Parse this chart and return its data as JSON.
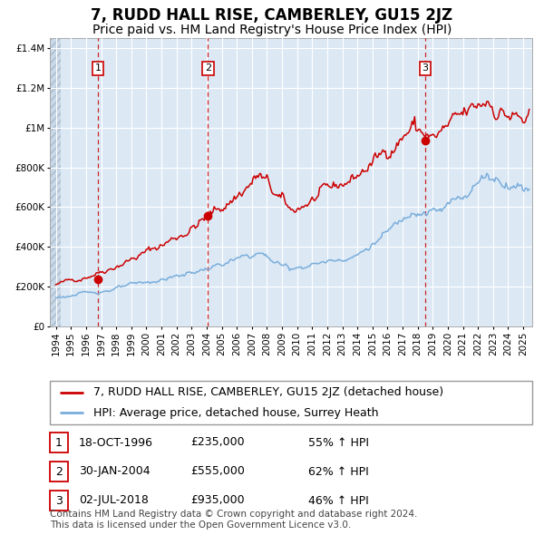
{
  "title": "7, RUDD HALL RISE, CAMBERLEY, GU15 2JZ",
  "subtitle": "Price paid vs. HM Land Registry's House Price Index (HPI)",
  "red_label": "7, RUDD HALL RISE, CAMBERLEY, GU15 2JZ (detached house)",
  "blue_label": "HPI: Average price, detached house, Surrey Heath",
  "footer1": "Contains HM Land Registry data © Crown copyright and database right 2024.",
  "footer2": "This data is licensed under the Open Government Licence v3.0.",
  "transactions": [
    {
      "num": 1,
      "date": "18-OCT-1996",
      "price": "£235,000",
      "pct": "55% ↑ HPI"
    },
    {
      "num": 2,
      "date": "30-JAN-2004",
      "price": "£555,000",
      "pct": "62% ↑ HPI"
    },
    {
      "num": 3,
      "date": "02-JUL-2018",
      "price": "£935,000",
      "pct": "46% ↑ HPI"
    }
  ],
  "transaction_dates_decimal": [
    1996.79,
    2004.08,
    2018.5
  ],
  "transaction_prices": [
    235000,
    555000,
    935000
  ],
  "xmin": 1993.6,
  "xmax": 2025.6,
  "ymin": 0,
  "ymax": 1450000,
  "yticks": [
    0,
    200000,
    400000,
    600000,
    800000,
    1000000,
    1200000,
    1400000
  ],
  "ytick_labels": [
    "£0",
    "£200K",
    "£400K",
    "£600K",
    "£800K",
    "£1M",
    "£1.2M",
    "£1.4M"
  ],
  "xticks": [
    1994,
    1995,
    1996,
    1997,
    1998,
    1999,
    2000,
    2001,
    2002,
    2003,
    2004,
    2005,
    2006,
    2007,
    2008,
    2009,
    2010,
    2011,
    2012,
    2013,
    2014,
    2015,
    2016,
    2017,
    2018,
    2019,
    2020,
    2021,
    2022,
    2023,
    2024,
    2025
  ],
  "red_color": "#cc0000",
  "blue_color": "#7aaddb",
  "bg_plot_color": "#dce9f5",
  "grid_color": "#ffffff",
  "vline_color": "#cc0000",
  "title_fontsize": 12,
  "subtitle_fontsize": 10,
  "axis_fontsize": 7.5,
  "legend_fontsize": 9,
  "table_fontsize": 9,
  "footer_fontsize": 7.5
}
